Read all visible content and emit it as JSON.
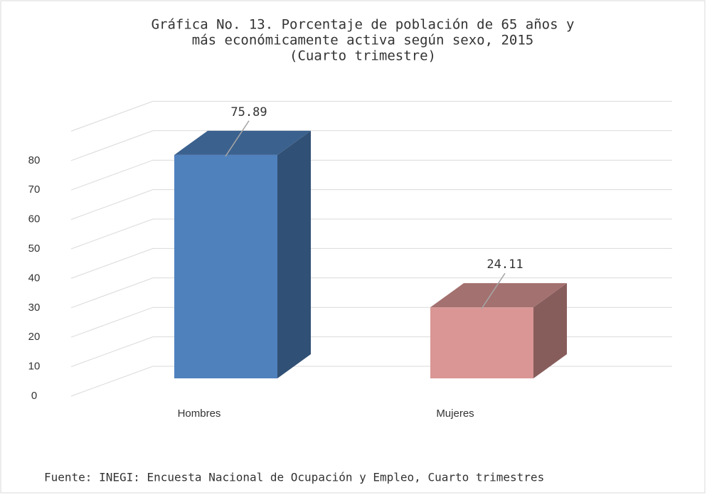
{
  "chart_data": {
    "type": "bar3d",
    "title": [
      "Gráfica No. 13. Porcentaje de población de 65 años y",
      "más económicamente activa según sexo, 2015",
      "(Cuarto trimestre)"
    ],
    "categories": [
      "Hombres",
      "Mujeres"
    ],
    "values": [
      75.89,
      24.11
    ],
    "colors": [
      "#4f81bd",
      "#d99694"
    ],
    "ylim": [
      0,
      90
    ],
    "yticks": [
      0,
      10,
      20,
      30,
      40,
      50,
      60,
      70,
      80
    ],
    "grid": true,
    "source": "Fuente: INEGI: Encuesta Nacional de Ocupación y Empleo, Cuarto trimestres"
  }
}
